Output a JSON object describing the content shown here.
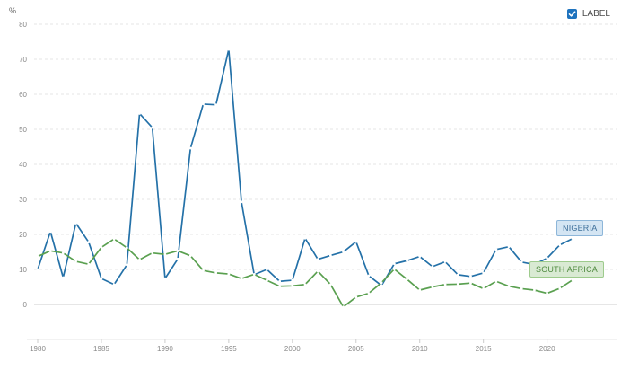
{
  "unit_label": "%",
  "toggle": {
    "label": "LABEL",
    "checked": true
  },
  "colors": {
    "nigeria": "#2471a8",
    "south_africa": "#5aa050",
    "grid": "#e4e4e4",
    "axis": "#cccccc"
  },
  "chart_data": {
    "type": "line",
    "title": "",
    "xlabel": "",
    "ylabel": "%",
    "xlim": [
      1980,
      2022
    ],
    "ylim": [
      -10,
      80
    ],
    "x_ticks": [
      1980,
      1985,
      1990,
      1995,
      2000,
      2005,
      2010,
      2015,
      2020
    ],
    "y_ticks": [
      0,
      10,
      20,
      30,
      40,
      50,
      60,
      70,
      80
    ],
    "grid": true,
    "x": [
      1980,
      1981,
      1982,
      1983,
      1984,
      1985,
      1986,
      1987,
      1988,
      1989,
      1990,
      1991,
      1992,
      1993,
      1994,
      1995,
      1996,
      1997,
      1998,
      1999,
      2000,
      2001,
      2002,
      2003,
      2004,
      2005,
      2006,
      2007,
      2008,
      2009,
      2010,
      2011,
      2012,
      2013,
      2014,
      2015,
      2016,
      2017,
      2018,
      2019,
      2020,
      2021,
      2022
    ],
    "series": [
      {
        "name": "NIGERIA",
        "values": [
          10,
          20.8,
          7.7,
          23.2,
          17.8,
          7.4,
          5.7,
          11.3,
          54.5,
          50.5,
          7.4,
          13,
          44.6,
          57.2,
          57,
          72.8,
          29.3,
          8.5,
          10,
          6.6,
          6.9,
          18.9,
          12.9,
          14,
          15,
          17.9,
          8.2,
          5.4,
          11.6,
          12.5,
          13.7,
          10.8,
          12.2,
          8.5,
          8,
          9,
          15.7,
          16.5,
          12.1,
          11.4,
          13.2,
          17,
          18.8
        ]
      },
      {
        "name": "SOUTH AFRICA",
        "values": [
          13.7,
          15.3,
          14.7,
          12.3,
          11.5,
          16.3,
          18.7,
          16.2,
          12.8,
          14.7,
          14.3,
          15.3,
          13.9,
          9.7,
          9,
          8.7,
          7.4,
          8.6,
          6.9,
          5.2,
          5.3,
          5.7,
          9.5,
          5.7,
          -0.7,
          2.1,
          3.2,
          6.2,
          10.1,
          7.2,
          4.1,
          5,
          5.7,
          5.8,
          6.1,
          4.5,
          6.6,
          5.2,
          4.5,
          4.1,
          3.2,
          4.6,
          7
        ]
      }
    ],
    "series_labels": [
      "NIGERIA",
      "SOUTH AFRICA"
    ]
  }
}
